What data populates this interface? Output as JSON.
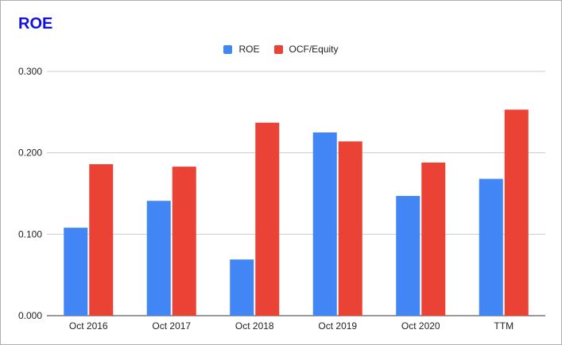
{
  "chart_data": {
    "type": "bar",
    "title": "ROE",
    "categories": [
      "Oct 2016",
      "Oct 2017",
      "Oct 2018",
      "Oct 2019",
      "Oct 2020",
      "TTM"
    ],
    "series": [
      {
        "name": "ROE",
        "color": "#4285f4",
        "values": [
          0.108,
          0.141,
          0.069,
          0.225,
          0.147,
          0.168
        ]
      },
      {
        "name": "OCF/Equity",
        "color": "#ea4335",
        "values": [
          0.186,
          0.183,
          0.237,
          0.214,
          0.188,
          0.253
        ]
      }
    ],
    "yticks": [
      "0.000",
      "0.100",
      "0.200",
      "0.300"
    ],
    "ylim": [
      0,
      0.3
    ],
    "xlabel": "",
    "ylabel": "",
    "grid": true,
    "legend_position": "top-center"
  }
}
